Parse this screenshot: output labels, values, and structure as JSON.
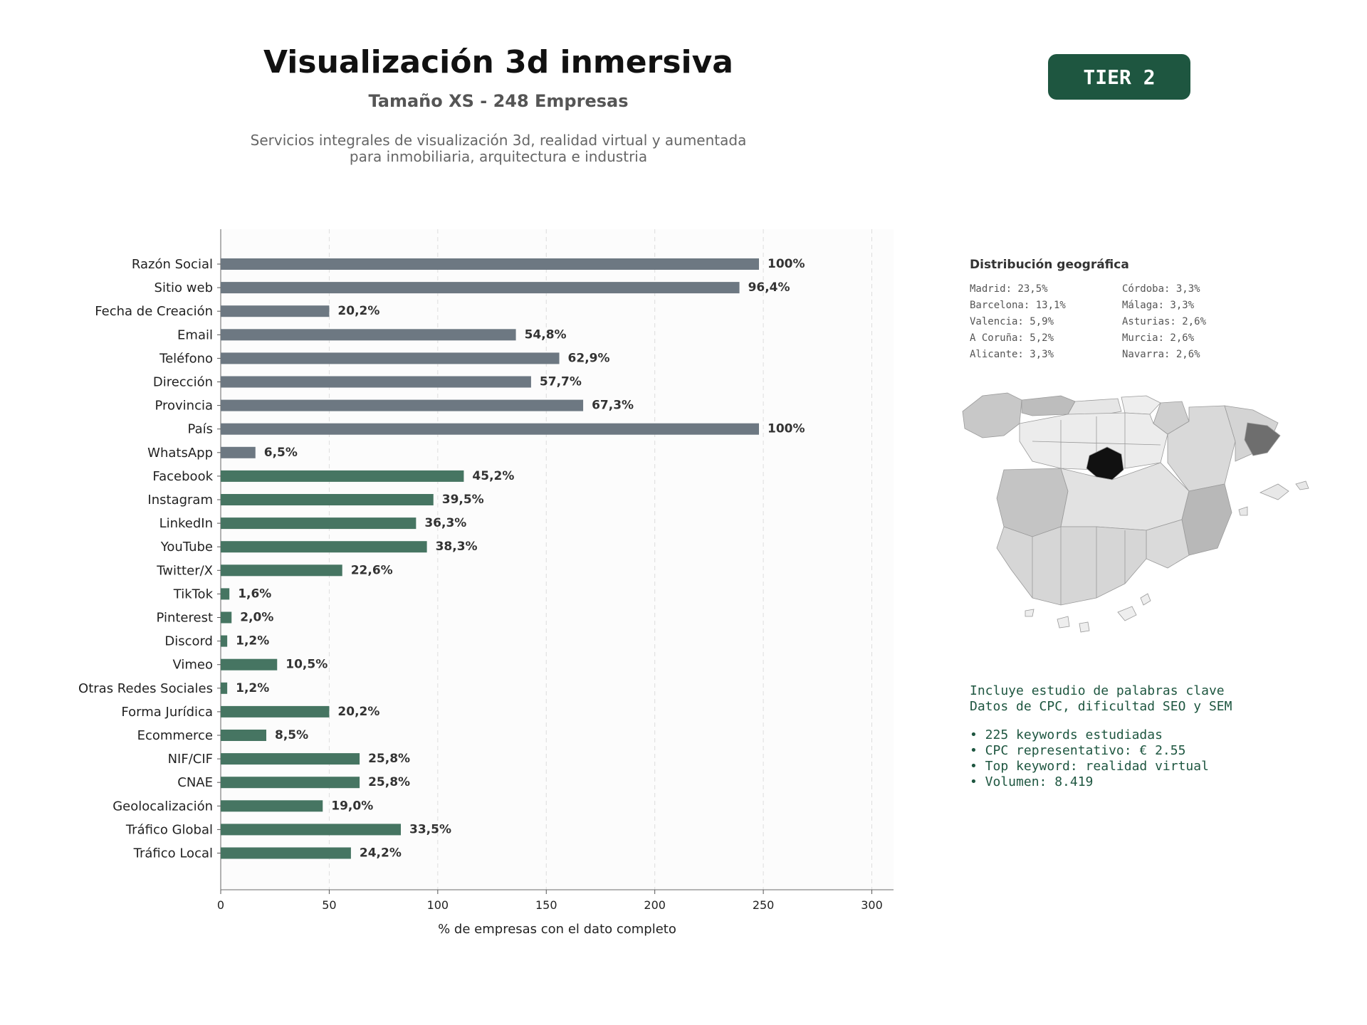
{
  "header": {
    "title": "Visualización 3d inmersiva",
    "subtitle": "Tamaño XS - 248 Empresas",
    "description_line1": "Servicios integrales de visualización 3d, realidad virtual y aumentada",
    "description_line2": "para inmobiliaria, arquitectura e industria",
    "tier": "TIER 2"
  },
  "colors": {
    "bar_gray": "#6d7882",
    "bar_green": "#467562",
    "accent": "#1e5640"
  },
  "chart_data": {
    "type": "bar",
    "orientation": "horizontal",
    "categories": [
      "Razón Social",
      "Sitio web",
      "Fecha de Creación",
      "Email",
      "Teléfono",
      "Dirección",
      "Provincia",
      "País",
      "WhatsApp",
      "Facebook",
      "Instagram",
      "LinkedIn",
      "YouTube",
      "Twitter/X",
      "TikTok",
      "Pinterest",
      "Discord",
      "Vimeo",
      "Otras Redes Sociales",
      "Forma Jurídica",
      "Ecommerce",
      "NIF/CIF",
      "CNAE",
      "Geolocalización",
      "Tráfico Global",
      "Tráfico Local"
    ],
    "values": [
      248,
      239,
      50,
      136,
      156,
      143,
      167,
      248,
      16,
      112,
      98,
      90,
      95,
      56,
      4,
      5,
      3,
      26,
      3,
      50,
      21,
      64,
      64,
      47,
      83,
      60
    ],
    "labels": [
      "100%",
      "96,4%",
      "20,2%",
      "54,8%",
      "62,9%",
      "57,7%",
      "67,3%",
      "100%",
      "6,5%",
      "45,2%",
      "39,5%",
      "36,3%",
      "38,3%",
      "22,6%",
      "1,6%",
      "2,0%",
      "1,2%",
      "10,5%",
      "1,2%",
      "20,2%",
      "8,5%",
      "25,8%",
      "25,8%",
      "19,0%",
      "33,5%",
      "24,2%"
    ],
    "groups": [
      "gray",
      "gray",
      "gray",
      "gray",
      "gray",
      "gray",
      "gray",
      "gray",
      "gray",
      "green",
      "green",
      "green",
      "green",
      "green",
      "green",
      "green",
      "green",
      "green",
      "green",
      "green",
      "green",
      "green",
      "green",
      "green",
      "green",
      "green"
    ],
    "xlabel": "% de empresas con el dato completo",
    "ylabel": "",
    "xlim": [
      0,
      310
    ],
    "xticks": [
      0,
      50,
      100,
      150,
      200,
      250,
      300
    ],
    "grid": true
  },
  "geo": {
    "title": "Distribución geográfica",
    "items": [
      "Madrid: 23,5%",
      "Córdoba: 3,3%",
      "Barcelona: 13,1%",
      "Málaga: 3,3%",
      "Valencia: 5,9%",
      "Asturias: 2,6%",
      "A Coruña: 5,2%",
      "Murcia: 2,6%",
      "Alicante: 3,3%",
      "Navarra: 2,6%"
    ]
  },
  "keywords": {
    "line1": "Incluye estudio de palabras clave",
    "line2": "Datos de CPC, dificultad SEO y SEM",
    "bullets": [
      "• 225 keywords estudiadas",
      "• CPC representativo: € 2.55",
      "• Top keyword: realidad virtual",
      "• Volumen: 8.419"
    ]
  }
}
